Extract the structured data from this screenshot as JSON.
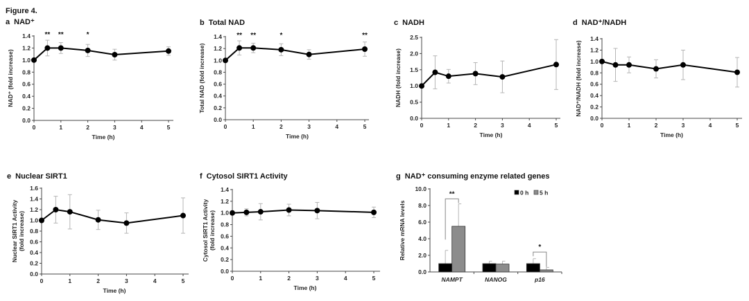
{
  "figure_label": "Figure 4.",
  "chart_data": [
    {
      "id": "a",
      "type": "line",
      "title": "NAD⁺",
      "letter": "a",
      "xlabel": "Time (h)",
      "ylabel": [
        "NAD⁺ (fold increase)"
      ],
      "x": [
        0,
        0.5,
        1,
        2,
        3,
        5
      ],
      "values": [
        1.0,
        1.2,
        1.2,
        1.16,
        1.09,
        1.15
      ],
      "errors": [
        0.0,
        0.13,
        0.09,
        0.1,
        0.09,
        0.07
      ],
      "significance": [
        "",
        "**",
        "**",
        "*",
        "",
        ""
      ],
      "xticks": [
        "0",
        "1",
        "2",
        "3",
        "4",
        "5"
      ],
      "yticks": [
        "0.0",
        "0.2",
        "0.4",
        "0.6",
        "0.8",
        "1.0",
        "1.2",
        "1.4"
      ],
      "xlim": [
        0,
        5
      ],
      "ylim": [
        0,
        1.4
      ],
      "grid": false
    },
    {
      "id": "b",
      "type": "line",
      "title": "Total NAD",
      "letter": "b",
      "xlabel": "Time (h)",
      "ylabel": [
        "Total NAD (fold increase)"
      ],
      "x": [
        0,
        0.5,
        1,
        2,
        3,
        5
      ],
      "values": [
        1.0,
        1.21,
        1.21,
        1.18,
        1.1,
        1.19
      ],
      "errors": [
        0.0,
        0.12,
        0.08,
        0.1,
        0.08,
        0.12
      ],
      "significance": [
        "",
        "**",
        "**",
        "*",
        "",
        "**"
      ],
      "xticks": [
        "0",
        "1",
        "2",
        "3",
        "4",
        "5"
      ],
      "yticks": [
        "0.0",
        "0.2",
        "0.4",
        "0.6",
        "0.8",
        "1.0",
        "1.2",
        "1.4"
      ],
      "xlim": [
        0,
        5
      ],
      "ylim": [
        0,
        1.4
      ],
      "grid": false
    },
    {
      "id": "c",
      "type": "line",
      "title": "NADH",
      "letter": "c",
      "xlabel": "Time (h)",
      "ylabel": [
        "NADH (fold increase)"
      ],
      "x": [
        0,
        0.5,
        1,
        2,
        3,
        5
      ],
      "values": [
        1.0,
        1.42,
        1.3,
        1.38,
        1.28,
        1.66
      ],
      "errors": [
        0.0,
        0.51,
        0.21,
        0.34,
        0.49,
        0.77
      ],
      "significance": [
        "",
        "",
        "",
        "",
        "",
        ""
      ],
      "xticks": [
        "0",
        "1",
        "2",
        "3",
        "4",
        "5"
      ],
      "yticks": [
        "0.0",
        "0.5",
        "1.0",
        "1.5",
        "2.0",
        "2.5"
      ],
      "xlim": [
        0,
        5
      ],
      "ylim": [
        0,
        2.5
      ],
      "grid": false
    },
    {
      "id": "d",
      "type": "line",
      "title": "NAD⁺/NADH",
      "letter": "d",
      "xlabel": "Time (h)",
      "ylabel": [
        "NAD⁺/NADH (fold increase)"
      ],
      "x": [
        0,
        0.5,
        1,
        2,
        3,
        5
      ],
      "values": [
        1.0,
        0.94,
        0.94,
        0.87,
        0.94,
        0.81
      ],
      "errors": [
        0.0,
        0.29,
        0.14,
        0.16,
        0.26,
        0.26
      ],
      "significance": [
        "",
        "",
        "",
        "",
        "",
        ""
      ],
      "xticks": [
        "0",
        "1",
        "2",
        "3",
        "4",
        "5"
      ],
      "yticks": [
        "0.0",
        "0.2",
        "0.4",
        "0.6",
        "0.8",
        "1.0",
        "1.2",
        "1.4"
      ],
      "xlim": [
        0,
        5
      ],
      "ylim": [
        0,
        1.4
      ],
      "grid": false
    },
    {
      "id": "e",
      "type": "line",
      "title": "Nuclear SIRT1",
      "letter": "e",
      "xlabel": "Time (h)",
      "ylabel": [
        "Nuclear SIRT1 Activity",
        "(fold increase)"
      ],
      "x": [
        0,
        0.5,
        1,
        2,
        3,
        5
      ],
      "values": [
        1.0,
        1.2,
        1.16,
        1.01,
        0.95,
        1.09
      ],
      "errors": [
        0.0,
        0.25,
        0.32,
        0.18,
        0.19,
        0.33
      ],
      "significance": [
        "",
        "",
        "",
        "",
        "",
        ""
      ],
      "xticks": [
        "0",
        "1",
        "2",
        "3",
        "4",
        "5"
      ],
      "yticks": [
        "0.0",
        "0.2",
        "0.4",
        "0.6",
        "0.8",
        "1.0",
        "1.2",
        "1.4",
        "1.6"
      ],
      "xlim": [
        0,
        5
      ],
      "ylim": [
        0,
        1.6
      ],
      "grid": false
    },
    {
      "id": "f",
      "type": "line",
      "title": "Cytosol SIRT1 Activity",
      "letter": "f",
      "xlabel": "Time (h)",
      "ylabel": [
        "Cytosol SIRT1 Activity",
        "(fold increase)"
      ],
      "x": [
        0,
        0.5,
        1,
        2,
        3,
        5
      ],
      "values": [
        1.0,
        1.01,
        1.02,
        1.05,
        1.04,
        1.01
      ],
      "errors": [
        0.0,
        0.06,
        0.14,
        0.1,
        0.14,
        0.09
      ],
      "significance": [
        "",
        "",
        "",
        "",
        "",
        ""
      ],
      "xticks": [
        "0",
        "1",
        "2",
        "3",
        "4",
        "5"
      ],
      "yticks": [
        "0.0",
        "0.2",
        "0.4",
        "0.6",
        "0.8",
        "1.0",
        "1.2",
        "1.4"
      ],
      "xlim": [
        0,
        5
      ],
      "ylim": [
        0,
        1.4
      ],
      "grid": false
    },
    {
      "id": "g",
      "type": "bar",
      "title": "NAD⁺ consuming enzyme related genes",
      "letter": "g",
      "xlabel": "",
      "ylabel": [
        "Relative mRNA levels"
      ],
      "categories": [
        "NAMPT",
        "NANOG",
        "p16"
      ],
      "series": [
        {
          "name": "0 h",
          "color": "#000000",
          "values": [
            1.0,
            1.0,
            1.0
          ],
          "errors": [
            1.6,
            0.3,
            0.6
          ]
        },
        {
          "name": "5 h",
          "color": "#8c8c8c",
          "values": [
            5.5,
            0.95,
            0.25
          ],
          "errors": [
            2.7,
            0.35,
            0.3
          ]
        }
      ],
      "significance": [
        "**",
        "",
        "*"
      ],
      "yticks": [
        "0.0",
        "2.0",
        "4.0",
        "6.0",
        "8.0",
        "10.0"
      ],
      "ylim": [
        0,
        10
      ],
      "legend": "top-right",
      "grid": false
    }
  ]
}
